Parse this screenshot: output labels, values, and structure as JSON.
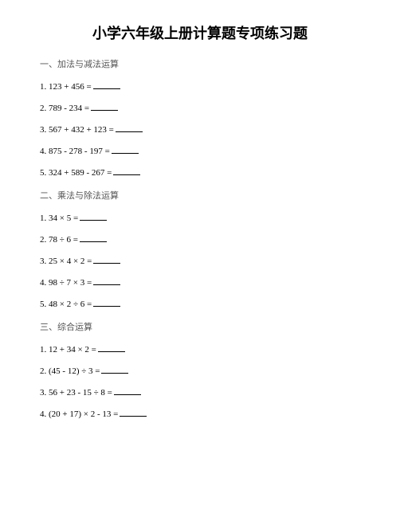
{
  "title": "小学六年级上册计算题专项练习题",
  "sections": [
    {
      "header": "一、加法与减法运算",
      "problems": [
        "1. 123 + 456 =",
        "2. 789 - 234 =",
        "3. 567 + 432 + 123 =",
        "4. 875 - 278 - 197 =",
        "5. 324 + 589 - 267 ="
      ]
    },
    {
      "header": "二、乘法与除法运算",
      "problems": [
        "1. 34 × 5 =",
        "2. 78 ÷ 6 =",
        "3. 25 × 4 × 2 =",
        "4. 98 ÷ 7 × 3 =",
        "5. 48 × 2 ÷ 6 ="
      ]
    },
    {
      "header": "三、综合运算",
      "problems": [
        "1. 12 + 34 × 2 =",
        "2. (45 - 12) ÷ 3 =",
        "3. 56 + 23 - 15 ÷ 8 =",
        "4. (20 + 17) × 2 - 13 ="
      ]
    }
  ]
}
